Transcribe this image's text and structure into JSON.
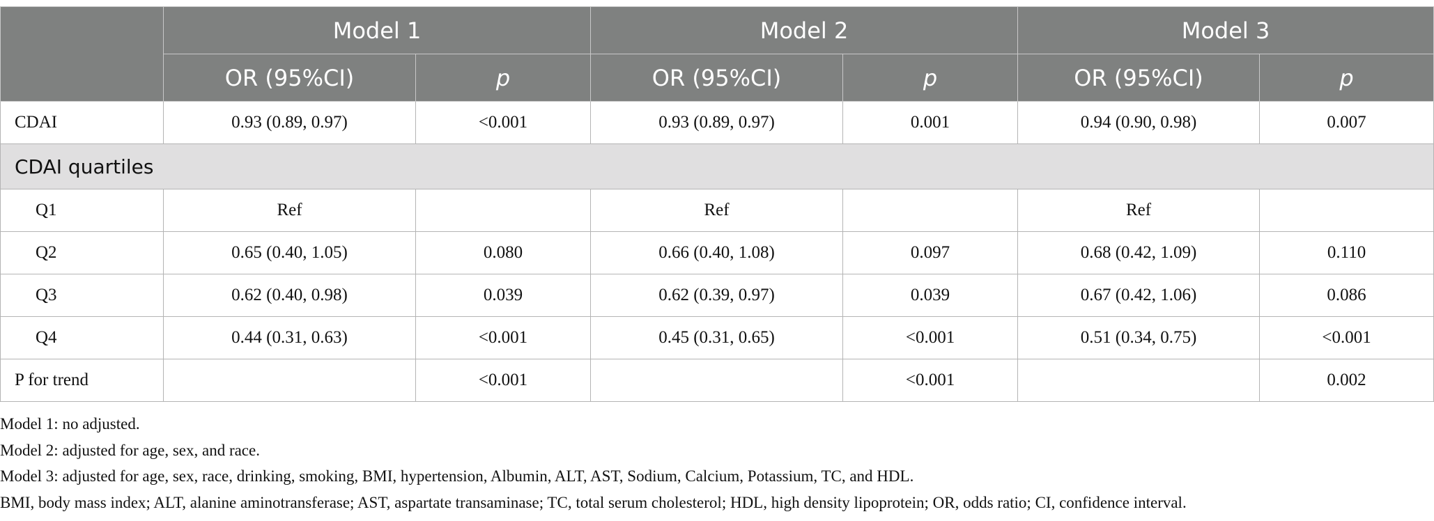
{
  "table": {
    "groups": [
      "Model 1",
      "Model 2",
      "Model 3"
    ],
    "subheaders": [
      "OR (95%CI)",
      "p",
      "OR (95%CI)",
      "p",
      "OR (95%CI)",
      "p"
    ],
    "rows": [
      [
        "CDAI",
        "0.93 (0.89, 0.97)",
        "<0.001",
        "0.93 (0.89, 0.97)",
        "0.001",
        "0.94 (0.90, 0.98)",
        "0.007"
      ],
      [
        "CDAI quartiles"
      ],
      [
        "Q1",
        "Ref",
        null,
        "Ref",
        null,
        "Ref",
        null
      ],
      [
        "Q2",
        "0.65 (0.40, 1.05)",
        "0.080",
        "0.66 (0.40, 1.08)",
        "0.097",
        "0.68 (0.42, 1.09)",
        "0.110"
      ],
      [
        "Q3",
        "0.62 (0.40, 0.98)",
        "0.039",
        "0.62 (0.39, 0.97)",
        "0.039",
        "0.67 (0.42, 1.06)",
        "0.086"
      ],
      [
        "Q4",
        "0.44 (0.31, 0.63)",
        "<0.001",
        "0.45 (0.31, 0.65)",
        "<0.001",
        "0.51 (0.34, 0.75)",
        "<0.001"
      ],
      [
        "P for trend",
        null,
        "<0.001",
        null,
        "<0.001",
        null,
        "0.002"
      ]
    ]
  },
  "footnotes": [
    "Model 1: no adjusted.",
    "Model 2: adjusted for age, sex, and race.",
    "Model 3: adjusted for age, sex, race, drinking, smoking, BMI, hypertension, Albumin, ALT, AST, Sodium, Calcium, Potassium, TC, and HDL.",
    "BMI, body mass index; ALT, alanine aminotransferase; AST, aspartate transaminase; TC, total serum cholesterol; HDL, high density lipoprotein; OR, odds ratio; CI, confidence interval."
  ]
}
